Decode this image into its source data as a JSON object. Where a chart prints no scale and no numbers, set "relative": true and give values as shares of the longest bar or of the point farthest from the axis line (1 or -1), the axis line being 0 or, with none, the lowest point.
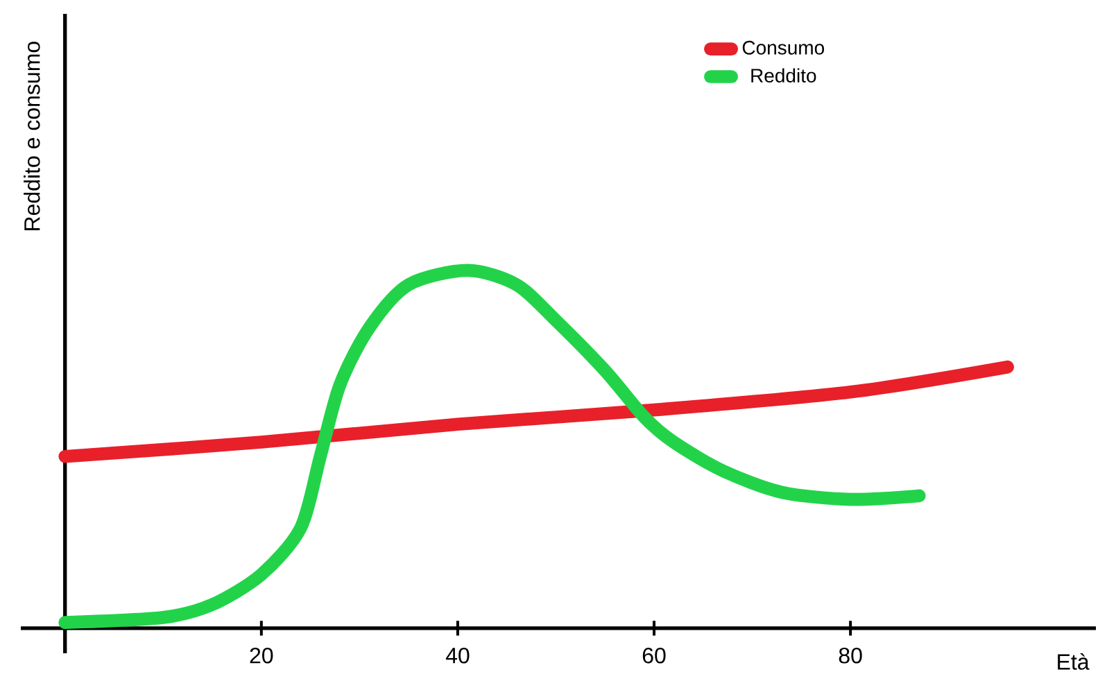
{
  "chart_data": {
    "type": "line",
    "xlabel": "Età",
    "ylabel": "Reddito e consumo",
    "relative": true,
    "xlim": [
      -4.5,
      105
    ],
    "xticks": [
      20,
      40,
      60,
      80
    ],
    "tick_labels": "x",
    "legend": "top right",
    "series": [
      {
        "name": "Consumo",
        "color": "#e8202a",
        "x": [
          0,
          20,
          40,
          60,
          80,
          96
        ],
        "values": [
          0.48,
          0.52,
          0.57,
          0.61,
          0.66,
          0.73
        ]
      },
      {
        "name": "Reddito",
        "color": "#22d34a",
        "x": [
          0,
          10,
          15,
          20,
          24,
          26,
          28,
          31,
          35,
          41,
          46,
          50,
          55,
          59,
          62,
          67,
          73,
          80,
          87
        ],
        "values": [
          0.016,
          0.03,
          0.066,
          0.15,
          0.28,
          0.48,
          0.68,
          0.84,
          0.96,
          1,
          0.96,
          0.86,
          0.72,
          0.59,
          0.52,
          0.44,
          0.38,
          0.36,
          0.37
        ]
      }
    ]
  }
}
